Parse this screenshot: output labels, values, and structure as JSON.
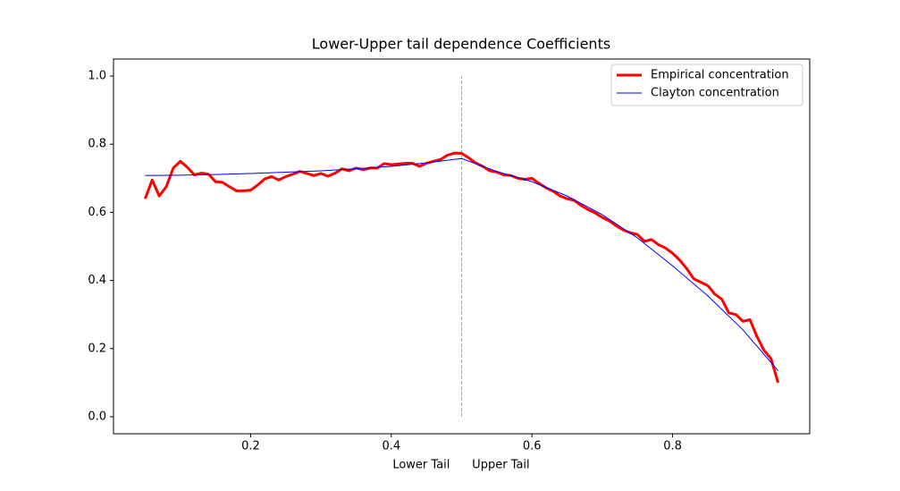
{
  "chart_data": {
    "type": "line",
    "title": "Lower-Upper tail dependence Coefficients",
    "xlabel": "Lower Tail      Upper Tail",
    "xlim": [
      0.005,
      0.995
    ],
    "ylim": [
      -0.05,
      1.05
    ],
    "xticks": [
      0.2,
      0.4,
      0.6,
      0.8
    ],
    "yticks": [
      {
        "value": 0,
        "label": "0.0"
      },
      0.2,
      0.4,
      0.6,
      0.8,
      {
        "value": 1,
        "label": "1.0"
      }
    ],
    "legend": "upper right",
    "vline": {
      "x": 0.5,
      "ymin": 0,
      "ymax": 1,
      "color": "#aaaaaa"
    },
    "series": [
      {
        "name": "Empirical concentration",
        "color": "#ff0000",
        "line_width": 3,
        "x": [
          0.05,
          0.06,
          0.07,
          0.08,
          0.09,
          0.1,
          0.11,
          0.12,
          0.13,
          0.14,
          0.15,
          0.16,
          0.17,
          0.18,
          0.19,
          0.2,
          0.21,
          0.22,
          0.23,
          0.24,
          0.25,
          0.26,
          0.27,
          0.28,
          0.29,
          0.3,
          0.31,
          0.32,
          0.33,
          0.34,
          0.35,
          0.36,
          0.37,
          0.38,
          0.39,
          0.4,
          0.41,
          0.42,
          0.43,
          0.44,
          0.45,
          0.46,
          0.47,
          0.48,
          0.49,
          0.5,
          0.51,
          0.52,
          0.53,
          0.54,
          0.55,
          0.56,
          0.57,
          0.58,
          0.59,
          0.6,
          0.61,
          0.62,
          0.63,
          0.64,
          0.65,
          0.66,
          0.67,
          0.68,
          0.69,
          0.7,
          0.71,
          0.72,
          0.73,
          0.74,
          0.75,
          0.76,
          0.77,
          0.78,
          0.79,
          0.8,
          0.81,
          0.82,
          0.83,
          0.84,
          0.85,
          0.86,
          0.87,
          0.88,
          0.89,
          0.9,
          0.91,
          0.92,
          0.93,
          0.94,
          0.95
        ],
        "values": [
          0.64,
          0.695,
          0.648,
          0.675,
          0.73,
          0.75,
          0.732,
          0.71,
          0.715,
          0.712,
          0.69,
          0.688,
          0.675,
          0.663,
          0.663,
          0.665,
          0.68,
          0.698,
          0.705,
          0.695,
          0.705,
          0.712,
          0.72,
          0.714,
          0.708,
          0.714,
          0.706,
          0.715,
          0.728,
          0.722,
          0.73,
          0.725,
          0.73,
          0.73,
          0.743,
          0.74,
          0.742,
          0.744,
          0.744,
          0.735,
          0.744,
          0.75,
          0.755,
          0.768,
          0.774,
          0.773,
          0.76,
          0.745,
          0.735,
          0.722,
          0.718,
          0.71,
          0.708,
          0.7,
          0.697,
          0.7,
          0.685,
          0.672,
          0.662,
          0.648,
          0.64,
          0.635,
          0.62,
          0.608,
          0.598,
          0.585,
          0.575,
          0.56,
          0.548,
          0.54,
          0.535,
          0.515,
          0.52,
          0.505,
          0.495,
          0.48,
          0.46,
          0.435,
          0.405,
          0.395,
          0.385,
          0.36,
          0.345,
          0.305,
          0.3,
          0.28,
          0.285,
          0.235,
          0.195,
          0.17,
          0.1
        ]
      },
      {
        "name": "Clayton concentration",
        "color": "#0000ff",
        "line_width": 1,
        "x": [
          0.05,
          0.1,
          0.15,
          0.2,
          0.25,
          0.3,
          0.35,
          0.4,
          0.45,
          0.5,
          0.55,
          0.6,
          0.65,
          0.7,
          0.75,
          0.8,
          0.85,
          0.9,
          0.95
        ],
        "values": [
          0.708,
          0.709,
          0.711,
          0.714,
          0.718,
          0.722,
          0.728,
          0.735,
          0.745,
          0.758,
          0.72,
          0.69,
          0.648,
          0.593,
          0.525,
          0.443,
          0.355,
          0.255,
          0.135
        ]
      }
    ]
  }
}
